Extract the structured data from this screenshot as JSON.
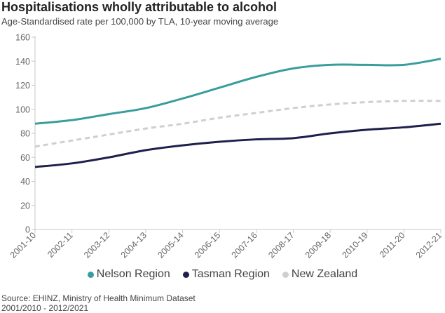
{
  "title": "Hospitalisations wholly attributable to alcohol",
  "subtitle": "Age-Standardised rate per 100,000 by TLA, 10-year moving average",
  "source_line1": "Source: EHINZ, Ministry of Health Minimum Dataset",
  "source_line2": "2001/2010 - 2012/2021",
  "chart_data": {
    "type": "line",
    "title": "Hospitalisations wholly attributable to alcohol",
    "subtitle": "Age-Standardised rate per 100,000 by TLA, 10-year moving average",
    "xlabel": "",
    "ylabel": "",
    "x": [
      "2001-10",
      "2002-11",
      "2003-12",
      "2004-13",
      "2005-14",
      "2006-15",
      "2007-16",
      "2008-17",
      "2009-18",
      "2010-19",
      "2011-20",
      "2012-21"
    ],
    "ylim": [
      0,
      160
    ],
    "yticks": [
      0,
      20,
      40,
      60,
      80,
      100,
      120,
      140,
      160
    ],
    "grid": false,
    "legend_position": "bottom",
    "series": [
      {
        "name": "Nelson Region",
        "color": "#3a9d9d",
        "style": "solid",
        "values": [
          88,
          91,
          96,
          101,
          109,
          118,
          127,
          134,
          137,
          137,
          137,
          142
        ]
      },
      {
        "name": "Tasman Region",
        "color": "#1f1f4d",
        "style": "solid",
        "values": [
          52,
          55,
          60,
          66,
          70,
          73,
          75,
          76,
          80,
          83,
          85,
          88
        ]
      },
      {
        "name": "New Zealand",
        "color": "#cfcfcf",
        "style": "dashed",
        "values": [
          69,
          74,
          79,
          84,
          88,
          93,
          97,
          101,
          104,
          106,
          107,
          107
        ]
      }
    ]
  }
}
